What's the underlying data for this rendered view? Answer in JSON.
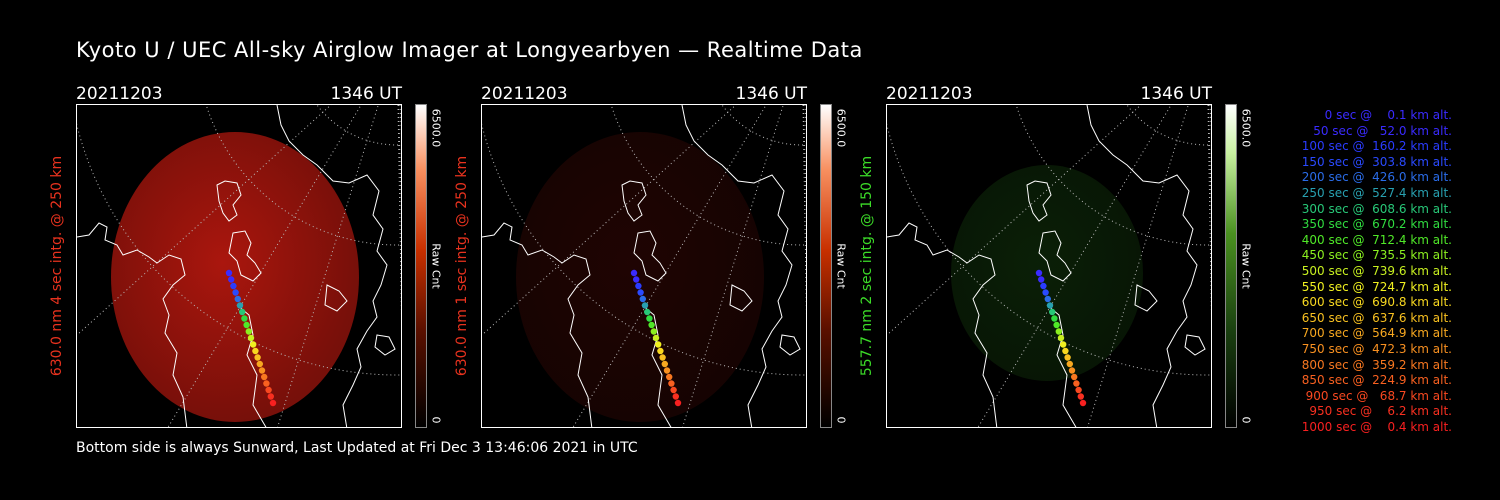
{
  "title": "Kyoto U / UEC All-sky Airglow Imager at Longyearbyen — Realtime Data",
  "footer": "Bottom side is always Sunward, Last Updated at Fri Dec  3 13:46:06 2021 in UTC",
  "panels": [
    {
      "date": "20211203",
      "time": "1346 UT",
      "ylabel": "630.0 nm 4 sec intg. @ 250 km",
      "label_color": "#e8321e",
      "colorbar_max": "6500.0",
      "colorbar_min": "0",
      "colorbar_label": "Raw Cnt",
      "image_tint": "#c81a10",
      "image_intensity": "bright"
    },
    {
      "date": "20211203",
      "time": "1346 UT",
      "ylabel": "630.0 nm 1 sec intg. @ 250 km",
      "label_color": "#e8321e",
      "colorbar_max": "6500.0",
      "colorbar_min": "0",
      "colorbar_label": "Raw Cnt",
      "image_tint": "#5a0d08",
      "image_intensity": "dim"
    },
    {
      "date": "20211203",
      "time": "1346 UT",
      "ylabel": "557.7 nm 2 sec intg. @ 150 km",
      "label_color": "#3cdc28",
      "colorbar_max": "6500.0",
      "colorbar_min": "0",
      "colorbar_label": "Raw Cnt",
      "image_tint": "#1e5a14",
      "image_intensity": "dim"
    }
  ],
  "legend": [
    {
      "text": "   0 sec @    0.1 km alt.",
      "color": "#3a2bff"
    },
    {
      "text": "  50 sec @   52.0 km alt.",
      "color": "#3a2bff"
    },
    {
      "text": " 100 sec @  160.2 km alt.",
      "color": "#2a3cff"
    },
    {
      "text": " 150 sec @  303.8 km alt.",
      "color": "#2a4aff"
    },
    {
      "text": " 200 sec @  426.0 km alt.",
      "color": "#2a6ce8"
    },
    {
      "text": " 250 sec @  527.4 km alt.",
      "color": "#28a0b0"
    },
    {
      "text": " 300 sec @  608.6 km alt.",
      "color": "#28c878"
    },
    {
      "text": " 350 sec @  670.2 km alt.",
      "color": "#30dc40"
    },
    {
      "text": " 400 sec @  712.4 km alt.",
      "color": "#50e828"
    },
    {
      "text": " 450 sec @  735.5 km alt.",
      "color": "#8cf020"
    },
    {
      "text": " 500 sec @  739.6 km alt.",
      "color": "#c8f020"
    },
    {
      "text": " 550 sec @  724.7 km alt.",
      "color": "#f0f020"
    },
    {
      "text": " 600 sec @  690.8 km alt.",
      "color": "#f8d820"
    },
    {
      "text": " 650 sec @  637.6 km alt.",
      "color": "#f8c020"
    },
    {
      "text": " 700 sec @  564.9 km alt.",
      "color": "#f8a820"
    },
    {
      "text": " 750 sec @  472.3 km alt.",
      "color": "#f89020"
    },
    {
      "text": " 800 sec @  359.2 km alt.",
      "color": "#f87820"
    },
    {
      "text": " 850 sec @  224.9 km alt.",
      "color": "#f86020"
    },
    {
      "text": " 900 sec @   68.7 km alt.",
      "color": "#f84820"
    },
    {
      "text": " 950 sec @    6.2 km alt.",
      "color": "#f83020"
    },
    {
      "text": "1000 sec @    0.4 km alt.",
      "color": "#f82020"
    }
  ]
}
